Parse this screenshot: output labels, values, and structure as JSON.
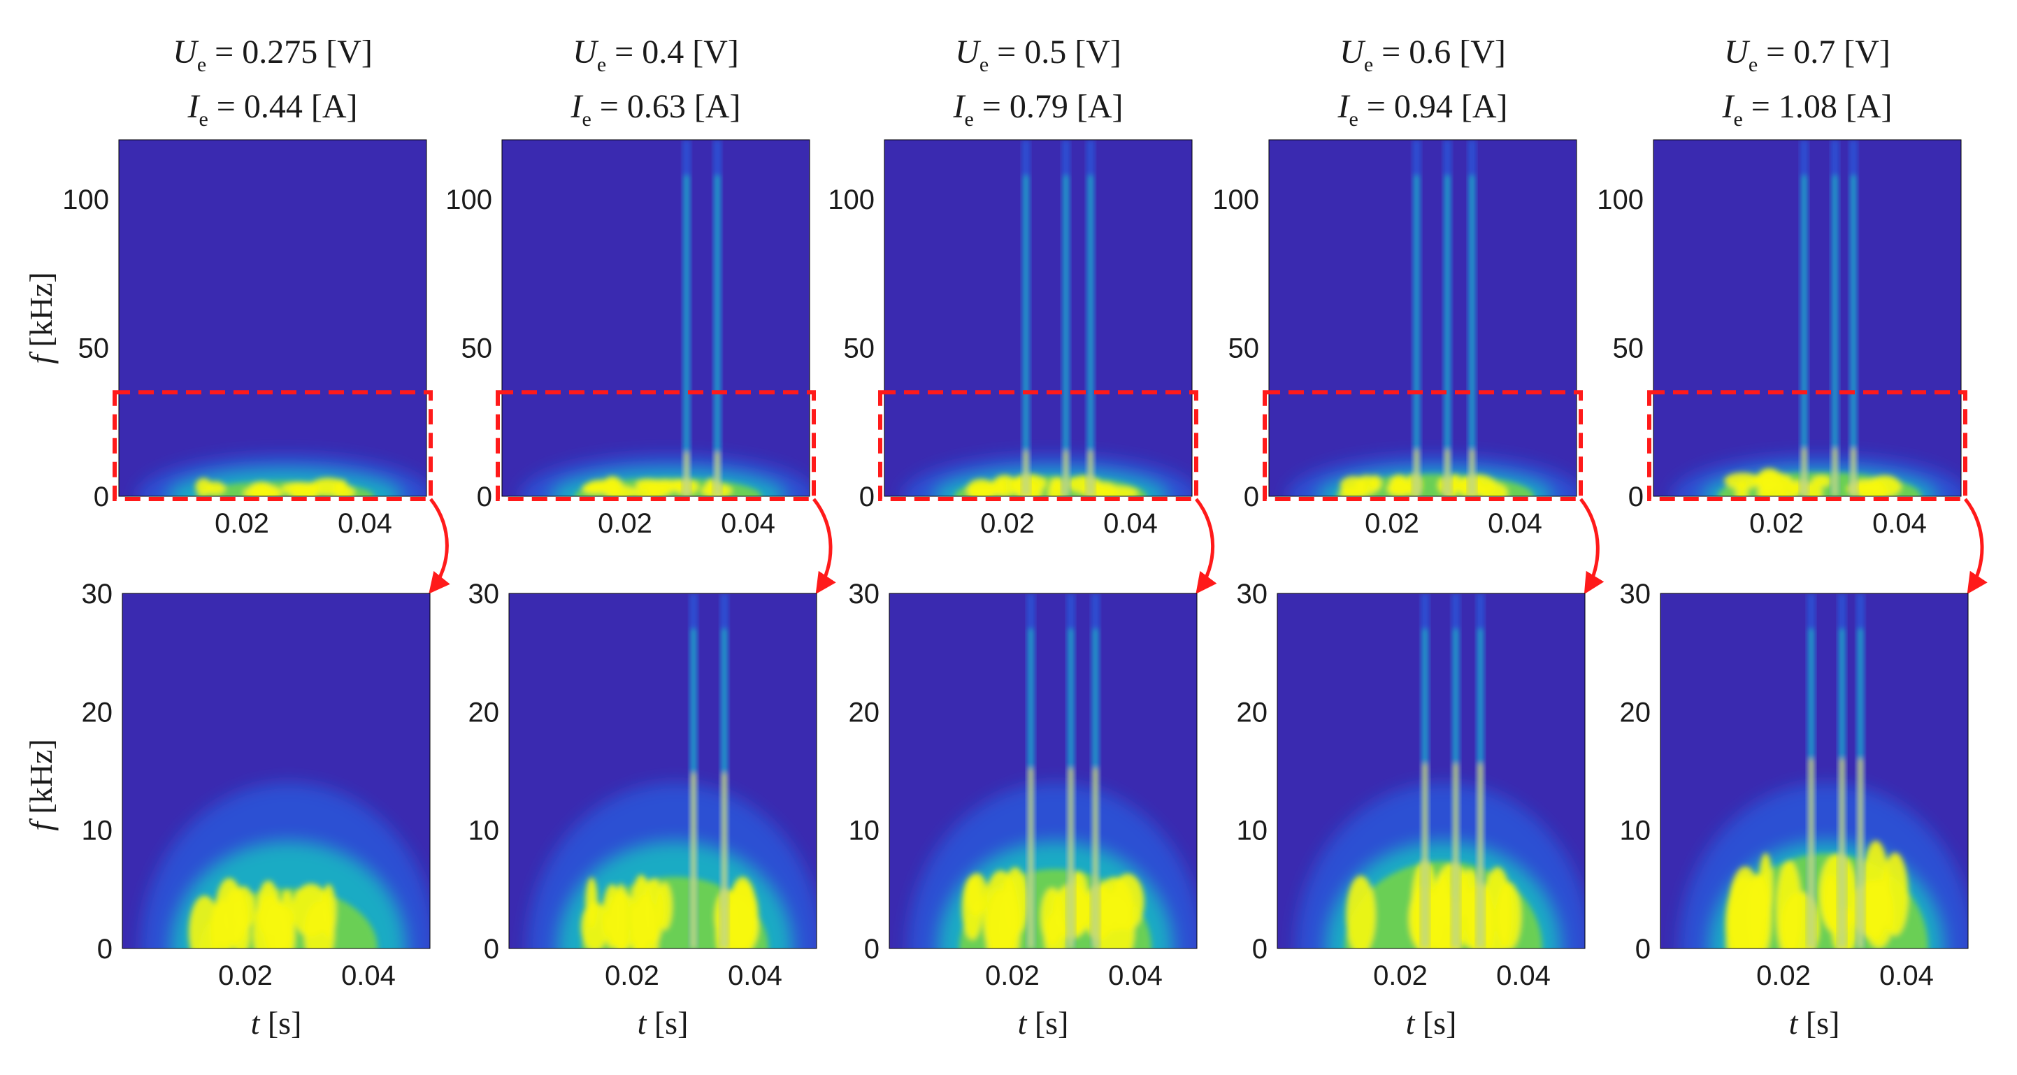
{
  "figure": {
    "colors": {
      "background": "#3a2ab0",
      "low": "#3b1fa8",
      "mid": "#1f6ff0",
      "cyan": "#19c2c0",
      "green": "#6fd24f",
      "high": "#f7f70f",
      "highlight_box": "#ff1a1a",
      "arrow": "#ff1a1a"
    },
    "panels": [
      {
        "title_line1": {
          "var": "U",
          "sub": "e",
          "text": " = 0.275 [V]"
        },
        "title_line2": {
          "var": "I",
          "sub": "e",
          "text": " = 0.44 [A]"
        },
        "spikes": [],
        "energy": 0.55
      },
      {
        "title_line1": {
          "var": "U",
          "sub": "e",
          "text": " = 0.4 [V]"
        },
        "title_line2": {
          "var": "I",
          "sub": "e",
          "text": " = 0.63 [A]"
        },
        "spikes": [
          0.03,
          0.035
        ],
        "energy": 0.7
      },
      {
        "title_line1": {
          "var": "U",
          "sub": "e",
          "text": " = 0.5 [V]"
        },
        "title_line2": {
          "var": "I",
          "sub": "e",
          "text": " = 0.79 [A]"
        },
        "spikes": [
          0.023,
          0.0295,
          0.0335
        ],
        "energy": 0.8
      },
      {
        "title_line1": {
          "var": "U",
          "sub": "e",
          "text": " = 0.6 [V]"
        },
        "title_line2": {
          "var": "I",
          "sub": "e",
          "text": " = 0.94 [A]"
        },
        "spikes": [
          0.024,
          0.029,
          0.033
        ],
        "energy": 0.9
      },
      {
        "title_line1": {
          "var": "U",
          "sub": "e",
          "text": " = 0.7 [V]"
        },
        "title_line2": {
          "var": "I",
          "sub": "e",
          "text": " = 1.08 [A]"
        },
        "spikes": [
          0.0245,
          0.0295,
          0.0325
        ],
        "energy": 1.0
      }
    ]
  },
  "chart_data": [
    {
      "type": "heatmap",
      "row": "top",
      "xlim": [
        0,
        0.05
      ],
      "ylim": [
        0,
        120
      ],
      "xticks": [
        "0.02",
        "0.04"
      ],
      "xtick_values": [
        0.02,
        0.04
      ],
      "yticks": [
        "0",
        "50",
        "100"
      ],
      "ytick_values": [
        0,
        50,
        100
      ],
      "ylabel_var": "f",
      "ylabel_unit": " [kHz]",
      "highlight_range_khz": [
        0,
        35
      ]
    },
    {
      "type": "heatmap",
      "row": "bottom",
      "xlim": [
        0,
        0.05
      ],
      "ylim": [
        0,
        30
      ],
      "xticks": [
        "0.02",
        "0.04"
      ],
      "xtick_values": [
        0.02,
        0.04
      ],
      "yticks": [
        "0",
        "10",
        "20",
        "30"
      ],
      "ytick_values": [
        0,
        10,
        20,
        30
      ],
      "ylabel_var": "f",
      "ylabel_unit": " [kHz]",
      "xlabel_var": "t",
      "xlabel_unit": " [s]"
    }
  ]
}
